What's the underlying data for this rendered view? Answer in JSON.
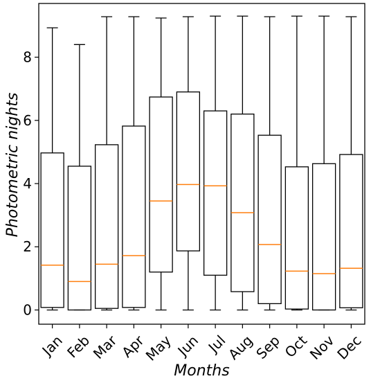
{
  "chart_data": {
    "type": "boxplot",
    "xlabel": "Months",
    "ylabel": "Photometric nights",
    "ylim": [
      -0.45,
      9.7
    ],
    "yticks": [
      0,
      2,
      4,
      6,
      8
    ],
    "grid": false,
    "colors": {
      "box": "#000000",
      "median": "#ff7f0e"
    },
    "categories": [
      "Jan",
      "Feb",
      "Mar",
      "Apr",
      "May",
      "Jun",
      "Jul",
      "Aug",
      "Sep",
      "Oct",
      "Nov",
      "Dec"
    ],
    "boxes": [
      {
        "min": 0.0,
        "q1": 0.08,
        "median": 1.42,
        "q3": 4.97,
        "max": 8.93
      },
      {
        "min": 0.0,
        "q1": 0.0,
        "median": 0.9,
        "q3": 4.55,
        "max": 8.4
      },
      {
        "min": 0.0,
        "q1": 0.05,
        "median": 1.45,
        "q3": 5.23,
        "max": 9.28
      },
      {
        "min": 0.0,
        "q1": 0.08,
        "median": 1.72,
        "q3": 5.82,
        "max": 9.28
      },
      {
        "min": 0.0,
        "q1": 1.2,
        "median": 3.45,
        "q3": 6.74,
        "max": 9.24
      },
      {
        "min": 0.0,
        "q1": 1.87,
        "median": 3.97,
        "q3": 6.9,
        "max": 9.28
      },
      {
        "min": 0.0,
        "q1": 1.1,
        "median": 3.93,
        "q3": 6.3,
        "max": 9.3
      },
      {
        "min": 0.0,
        "q1": 0.58,
        "median": 3.08,
        "q3": 6.2,
        "max": 9.3
      },
      {
        "min": 0.0,
        "q1": 0.2,
        "median": 2.07,
        "q3": 5.53,
        "max": 9.28
      },
      {
        "min": 0.0,
        "q1": 0.03,
        "median": 1.23,
        "q3": 4.53,
        "max": 9.3
      },
      {
        "min": 0.0,
        "q1": 0.0,
        "median": 1.15,
        "q3": 4.63,
        "max": 9.3
      },
      {
        "min": 0.0,
        "q1": 0.07,
        "median": 1.32,
        "q3": 4.92,
        "max": 9.28
      }
    ]
  }
}
